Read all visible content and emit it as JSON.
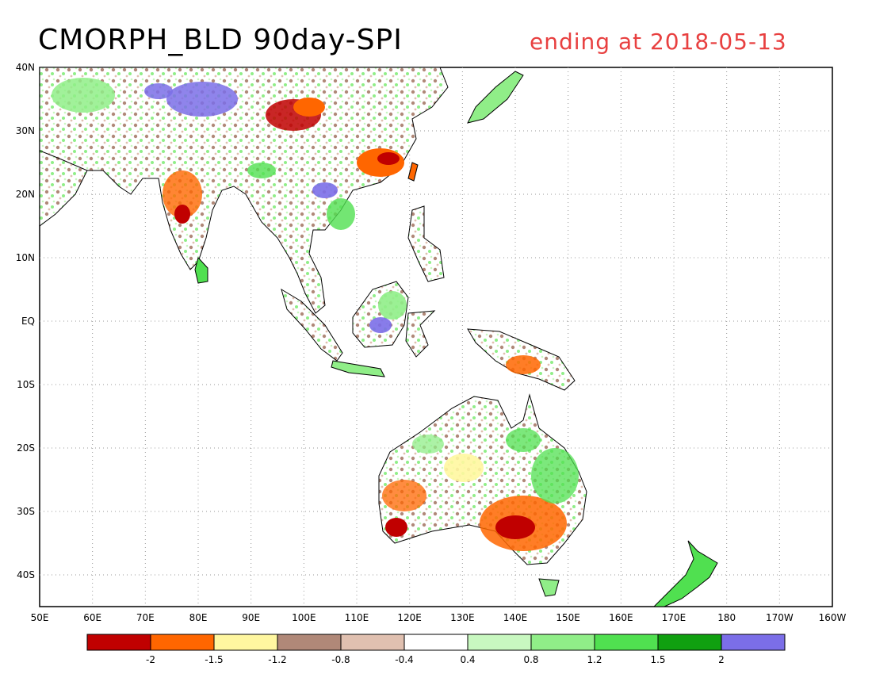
{
  "title": "CMORPH_BLD 90day-SPI",
  "subtitle": "ending at 2018-05-13",
  "colors": {
    "land_outline": "#000000",
    "grid": "#9a9a9a",
    "subtitle": "#e84040"
  },
  "lat_labels": [
    "40N",
    "30N",
    "20N",
    "10N",
    "EQ",
    "10S",
    "20S",
    "30S",
    "40S"
  ],
  "lon_labels": [
    "50E",
    "60E",
    "70E",
    "80E",
    "90E",
    "100E",
    "110E",
    "120E",
    "130E",
    "140E",
    "150E",
    "160E",
    "170E",
    "180",
    "170W",
    "160W"
  ],
  "legend": {
    "colors": [
      "#c00000",
      "#ff6600",
      "#fff7a0",
      "#b08878",
      "#e0c0b0",
      "#ffffff",
      "#c8f8c0",
      "#90ee88",
      "#50e050",
      "#10a010",
      "#7b6ee8"
    ],
    "tick_labels": [
      "-2",
      "-1.5",
      "-1.2",
      "-0.8",
      "-0.4",
      "0.4",
      "0.8",
      "1.2",
      "1.5",
      "2"
    ]
  }
}
